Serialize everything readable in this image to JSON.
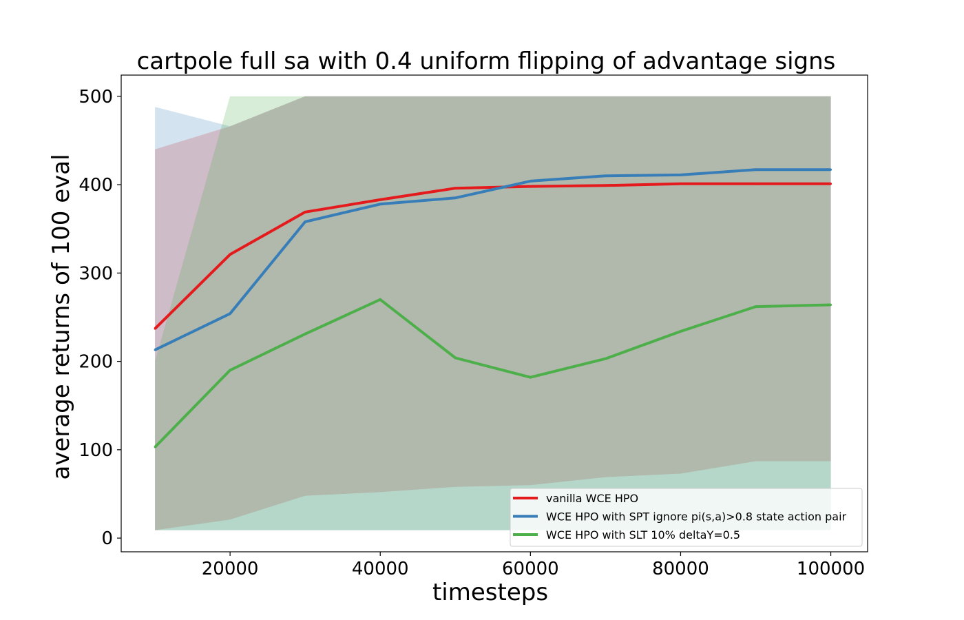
{
  "chart_data": {
    "type": "line",
    "title": "cartpole full sa with 0.4 uniform flipping of advantage signs",
    "xlabel": "timesteps",
    "ylabel": "average returns of 100 eval",
    "xlim": [
      5500,
      104900
    ],
    "ylim": [
      -15.5,
      524
    ],
    "x_ticks": [
      20000,
      40000,
      60000,
      80000,
      100000
    ],
    "x_tick_labels": [
      "20000",
      "40000",
      "60000",
      "80000",
      "100000"
    ],
    "y_ticks": [
      0,
      100,
      200,
      300,
      400,
      500
    ],
    "y_tick_labels": [
      "0",
      "100",
      "200",
      "300",
      "400",
      "500"
    ],
    "grid": false,
    "legend_position": "lower-right",
    "x": [
      10000,
      20000,
      30000,
      40000,
      50000,
      60000,
      70000,
      80000,
      90000,
      100000
    ],
    "series": [
      {
        "name": "vanilla WCE HPO",
        "color": "#e41a1c",
        "values": [
          237,
          321,
          369,
          383,
          396,
          398,
          399,
          401,
          401,
          401
        ],
        "band_lower": [
          9,
          21,
          48,
          52,
          58,
          60,
          69,
          73,
          87,
          87
        ],
        "band_upper": [
          440,
          466,
          500,
          500,
          500,
          500,
          500,
          500,
          500,
          500
        ]
      },
      {
        "name": "WCE HPO with SPT ignore pi(s,a)>0.8 state action pair",
        "color": "#377eb8",
        "values": [
          213,
          254,
          358,
          378,
          385,
          404,
          410,
          411,
          417,
          417
        ],
        "band_lower": [
          9,
          9,
          9,
          9,
          9,
          9,
          9,
          9,
          9,
          9
        ],
        "band_upper": [
          488,
          466,
          500,
          500,
          500,
          500,
          500,
          500,
          500,
          500
        ]
      },
      {
        "name": "WCE HPO with SLT 10% deltaY=0.5",
        "color": "#4daf4a",
        "values": [
          103,
          190,
          231,
          270,
          204,
          182,
          203,
          234,
          262,
          264
        ],
        "band_lower": [
          9,
          9,
          9,
          9,
          9,
          9,
          9,
          9,
          9,
          9
        ],
        "band_upper": [
          200,
          500,
          500,
          500,
          500,
          500,
          500,
          500,
          500,
          500
        ]
      }
    ]
  }
}
